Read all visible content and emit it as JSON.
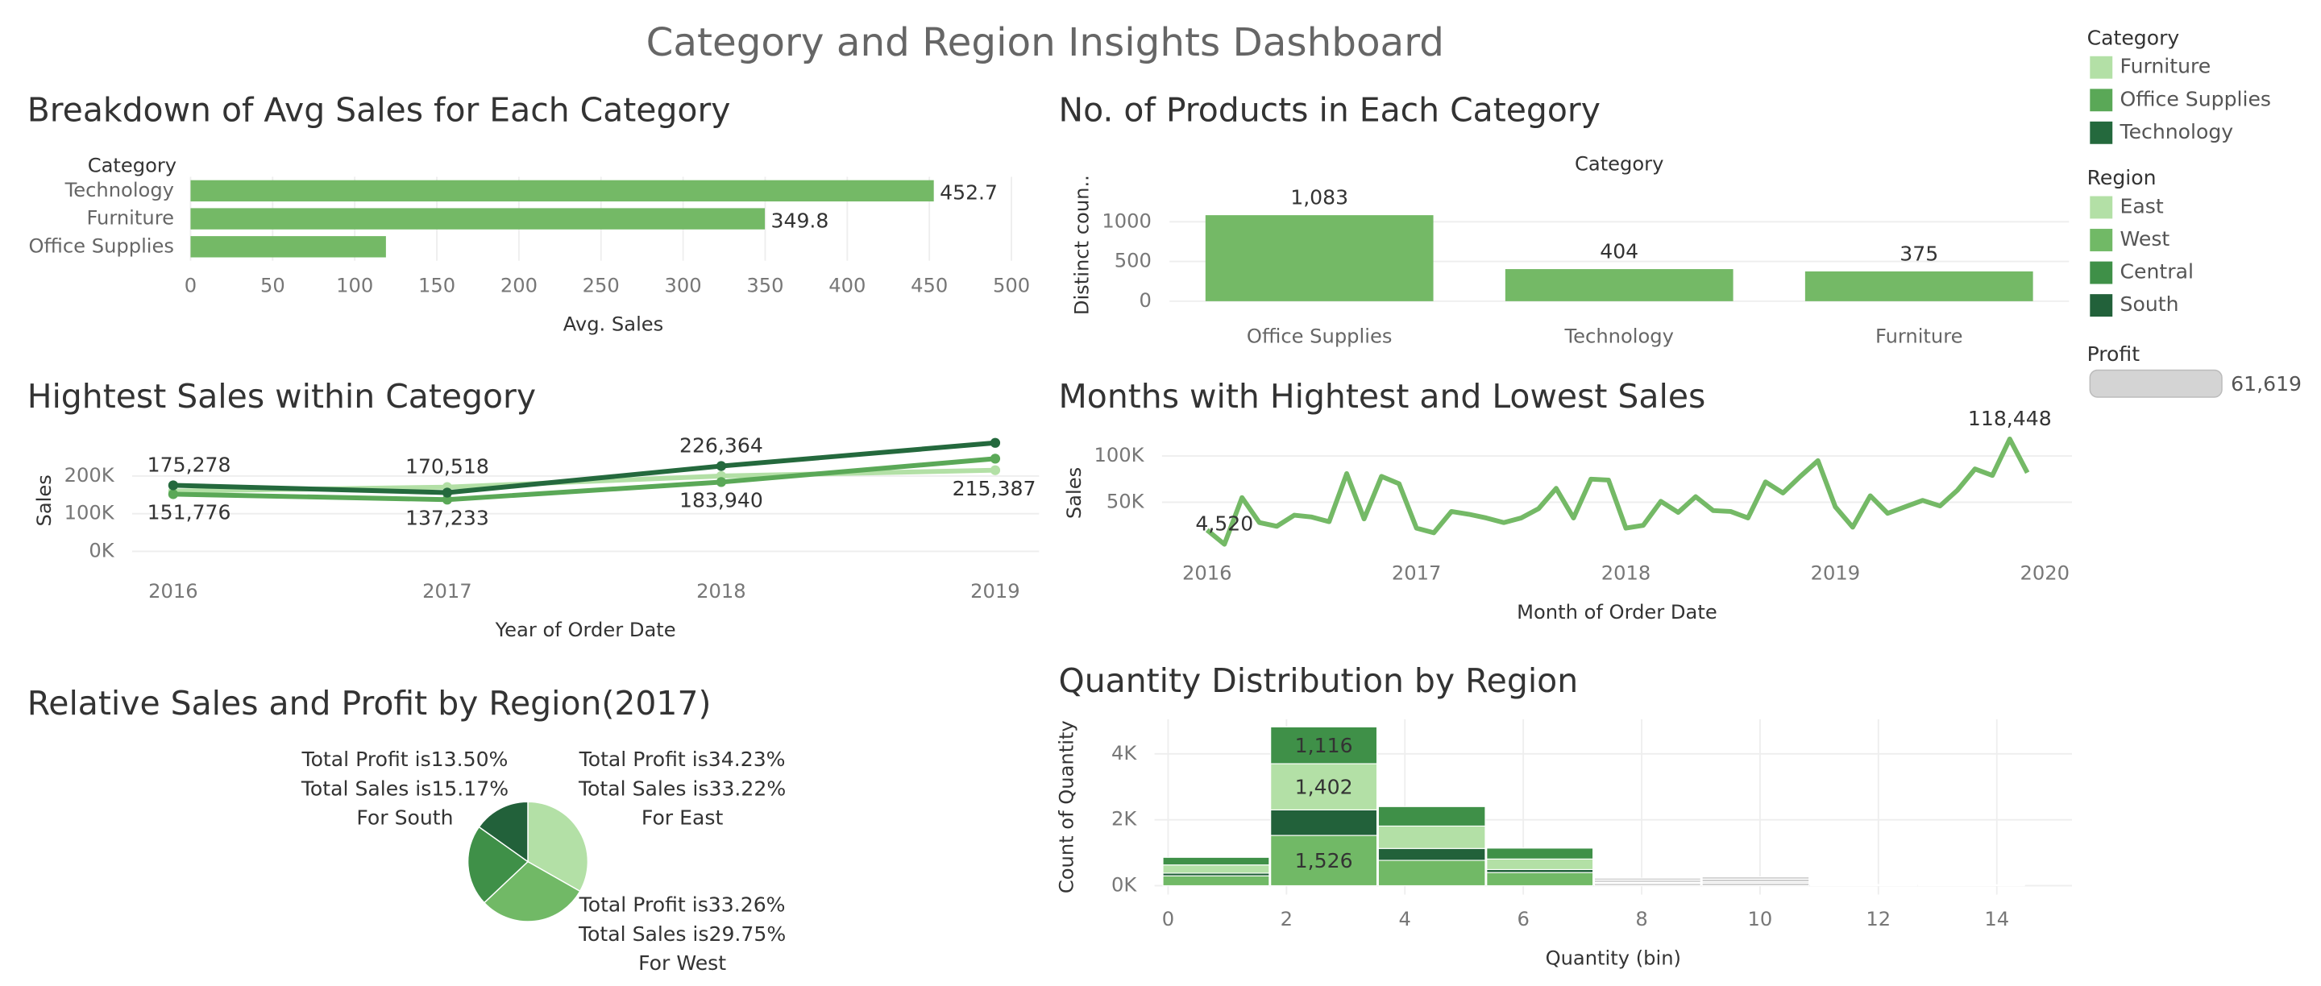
{
  "title": "Category and Region Insights Dashboard",
  "chart_data": [
    {
      "type": "bar",
      "orientation": "horizontal",
      "title": "Breakdown of Avg Sales for Each Category",
      "category_header": "Category",
      "xlabel": "Avg. Sales",
      "categories": [
        "Technology",
        "Furniture",
        "Office Supplies"
      ],
      "values": [
        452.7,
        349.8,
        119
      ],
      "value_labels": [
        "452.7",
        "349.8",
        null
      ],
      "color": "#74b966",
      "xlim": [
        0,
        515
      ],
      "xticks": [
        0,
        50,
        100,
        150,
        200,
        250,
        300,
        350,
        400,
        450,
        500
      ],
      "grid": true
    },
    {
      "type": "bar",
      "orientation": "vertical",
      "title": "No. of Products in Each Category",
      "category_header": "Category",
      "ylabel": "Distinct coun..",
      "categories": [
        "Office Supplies",
        "Technology",
        "Furniture"
      ],
      "values": [
        1083,
        404,
        375
      ],
      "value_labels": [
        "1,083",
        "404",
        "375"
      ],
      "color": "#74b966",
      "ylim": [
        -170,
        1585
      ],
      "yticks": [
        0,
        500,
        1000
      ],
      "grid": true
    },
    {
      "type": "line",
      "title": "Hightest Sales within Category",
      "xlabel": "Year of Order Date",
      "ylabel": "Sales",
      "x": [
        2016,
        2017,
        2018,
        2019
      ],
      "markers": true,
      "series": [
        {
          "name": "Furniture",
          "color": "#b3e0a6",
          "values": [
            160000,
            170518,
            200000,
            215387
          ],
          "value_labels": [
            null,
            "170,518",
            null,
            "215,387"
          ]
        },
        {
          "name": "Office Supplies",
          "color": "#5aa857",
          "values": [
            151776,
            137233,
            183940,
            246000
          ],
          "value_labels": [
            "151,776",
            "137,233",
            "183,940",
            null
          ]
        },
        {
          "name": "Technology",
          "color": "#24693d",
          "values": [
            175278,
            156000,
            226364,
            288000
          ],
          "value_labels": [
            "175,278",
            null,
            "226,364",
            null
          ]
        }
      ],
      "xlim": [
        2015.85,
        2019.16
      ],
      "xticks": [
        2016,
        2017,
        2018,
        2019
      ],
      "ylim": [
        -40000,
        310000
      ],
      "yticks": [
        {
          "value": 0,
          "label": "0K"
        },
        {
          "value": 100000,
          "label": "100K"
        },
        {
          "value": 200000,
          "label": "200K"
        }
      ],
      "grid": true
    },
    {
      "type": "line",
      "title": "Months with Hightest and Lowest Sales",
      "xlabel": "Month of Order Date",
      "ylabel": "Sales",
      "x": [
        2016,
        2016.083,
        2016.167,
        2016.25,
        2016.333,
        2016.417,
        2016.5,
        2016.583,
        2016.667,
        2016.75,
        2016.833,
        2016.917,
        2017,
        2017.083,
        2017.167,
        2017.25,
        2017.333,
        2017.417,
        2017.5,
        2017.583,
        2017.667,
        2017.75,
        2017.833,
        2017.917,
        2018,
        2018.083,
        2018.167,
        2018.25,
        2018.333,
        2018.417,
        2018.5,
        2018.583,
        2018.667,
        2018.75,
        2018.833,
        2018.917,
        2019,
        2019.083,
        2019.167,
        2019.25,
        2019.333,
        2019.417,
        2019.5,
        2019.583,
        2019.667,
        2019.75,
        2019.833,
        2019.917
      ],
      "markers": false,
      "series": [
        {
          "name": "Sales",
          "color": "#74b966",
          "values": [
            20000,
            4520,
            55000,
            28000,
            24000,
            36000,
            34000,
            29000,
            81000,
            32000,
            78000,
            70000,
            22000,
            17000,
            40000,
            37000,
            33000,
            28000,
            33000,
            43000,
            65000,
            33000,
            75000,
            74000,
            22000,
            25000,
            51000,
            39000,
            56000,
            41000,
            40000,
            33000,
            72000,
            60000,
            78000,
            95000,
            45000,
            23000,
            57000,
            38000,
            45000,
            52000,
            46000,
            63000,
            86000,
            79000,
            118448,
            82000
          ],
          "value_labels": [
            null,
            "4,520",
            null,
            null,
            null,
            null,
            null,
            null,
            null,
            null,
            null,
            null,
            null,
            null,
            null,
            null,
            null,
            null,
            null,
            null,
            null,
            null,
            null,
            null,
            null,
            null,
            null,
            null,
            null,
            null,
            null,
            null,
            null,
            null,
            null,
            null,
            null,
            null,
            null,
            null,
            null,
            null,
            null,
            null,
            null,
            null,
            "118,448",
            null
          ]
        }
      ],
      "xlim": [
        2015.785,
        2020.13
      ],
      "xticks": [
        2016,
        2017,
        2018,
        2019,
        2020
      ],
      "ylim": [
        0,
        120000
      ],
      "yticks": [
        {
          "value": 50000,
          "label": "50K"
        },
        {
          "value": 100000,
          "label": "100K"
        }
      ],
      "grid": true
    },
    {
      "type": "pie",
      "title": "Relative Sales and Profit by Region(2017)",
      "values": [
        33.22,
        29.75,
        21.86,
        15.17
      ],
      "colors": [
        "#b3e0a6",
        "#71b966",
        "#3f9048",
        "#22613a"
      ],
      "slice_labels": [
        [
          "Total Profit is34.23%",
          "Total Sales is33.22%",
          "For East"
        ],
        [
          "Total Profit is33.26%",
          "Total Sales is29.75%",
          "For West"
        ],
        null,
        [
          "Total Profit is13.50%",
          "Total Sales is15.17%",
          "For South"
        ]
      ]
    },
    {
      "type": "histogram",
      "title": "Quantity Distribution by Region",
      "xlabel": "Quantity (bin)",
      "ylabel": "Count of Quantity",
      "bins": [
        -0.1,
        1.72,
        3.54,
        5.37,
        7.19,
        9.01,
        10.84,
        12.66,
        14.48
      ],
      "series": [
        {
          "name": "West",
          "color": "#71b966",
          "values": [
            300,
            1526,
            770,
            400,
            70,
            80,
            10,
            8
          ],
          "value_labels": [
            null,
            "1,526",
            null,
            null,
            null,
            null,
            null,
            null
          ]
        },
        {
          "name": "South",
          "color": "#22613a",
          "values": [
            80,
            774,
            360,
            90,
            30,
            40,
            5,
            3
          ],
          "value_labels": [
            null,
            null,
            null,
            null,
            null,
            null,
            null,
            null
          ]
        },
        {
          "name": "East",
          "color": "#b3e0a6",
          "values": [
            250,
            1402,
            680,
            320,
            70,
            80,
            10,
            8
          ],
          "value_labels": [
            null,
            "1,402",
            null,
            null,
            null,
            null,
            null,
            null
          ]
        },
        {
          "name": "Central",
          "color": "#3f9048",
          "values": [
            230,
            1116,
            590,
            330,
            60,
            70,
            10,
            6
          ],
          "value_labels": [
            null,
            "1,116",
            null,
            null,
            null,
            null,
            null,
            null
          ]
        }
      ],
      "muted_color": "#cfcfcf",
      "muted_from_bin": 4,
      "xlim": [
        -0.23,
        15.27
      ],
      "xticks": [
        0,
        2,
        4,
        6,
        8,
        10,
        12,
        14
      ],
      "ylim": [
        -270,
        5050
      ],
      "yticks": [
        {
          "value": 0,
          "label": "0K"
        },
        {
          "value": 2000,
          "label": "2K"
        },
        {
          "value": 4000,
          "label": "4K"
        }
      ],
      "grid": true
    }
  ],
  "legends": [
    {
      "title": "Category",
      "items": [
        {
          "name": "Furniture",
          "color": "#b3e0a6"
        },
        {
          "name": "Office Supplies",
          "color": "#5aa857"
        },
        {
          "name": "Technology",
          "color": "#24693d"
        }
      ]
    },
    {
      "title": "Region",
      "items": [
        {
          "name": "East",
          "color": "#b3e0a6"
        },
        {
          "name": "West",
          "color": "#71b966"
        },
        {
          "name": "Central",
          "color": "#3f9048"
        },
        {
          "name": "South",
          "color": "#22613a"
        }
      ]
    }
  ],
  "profit_legend": {
    "title": "Profit",
    "value": 61619,
    "label": "61,619"
  }
}
